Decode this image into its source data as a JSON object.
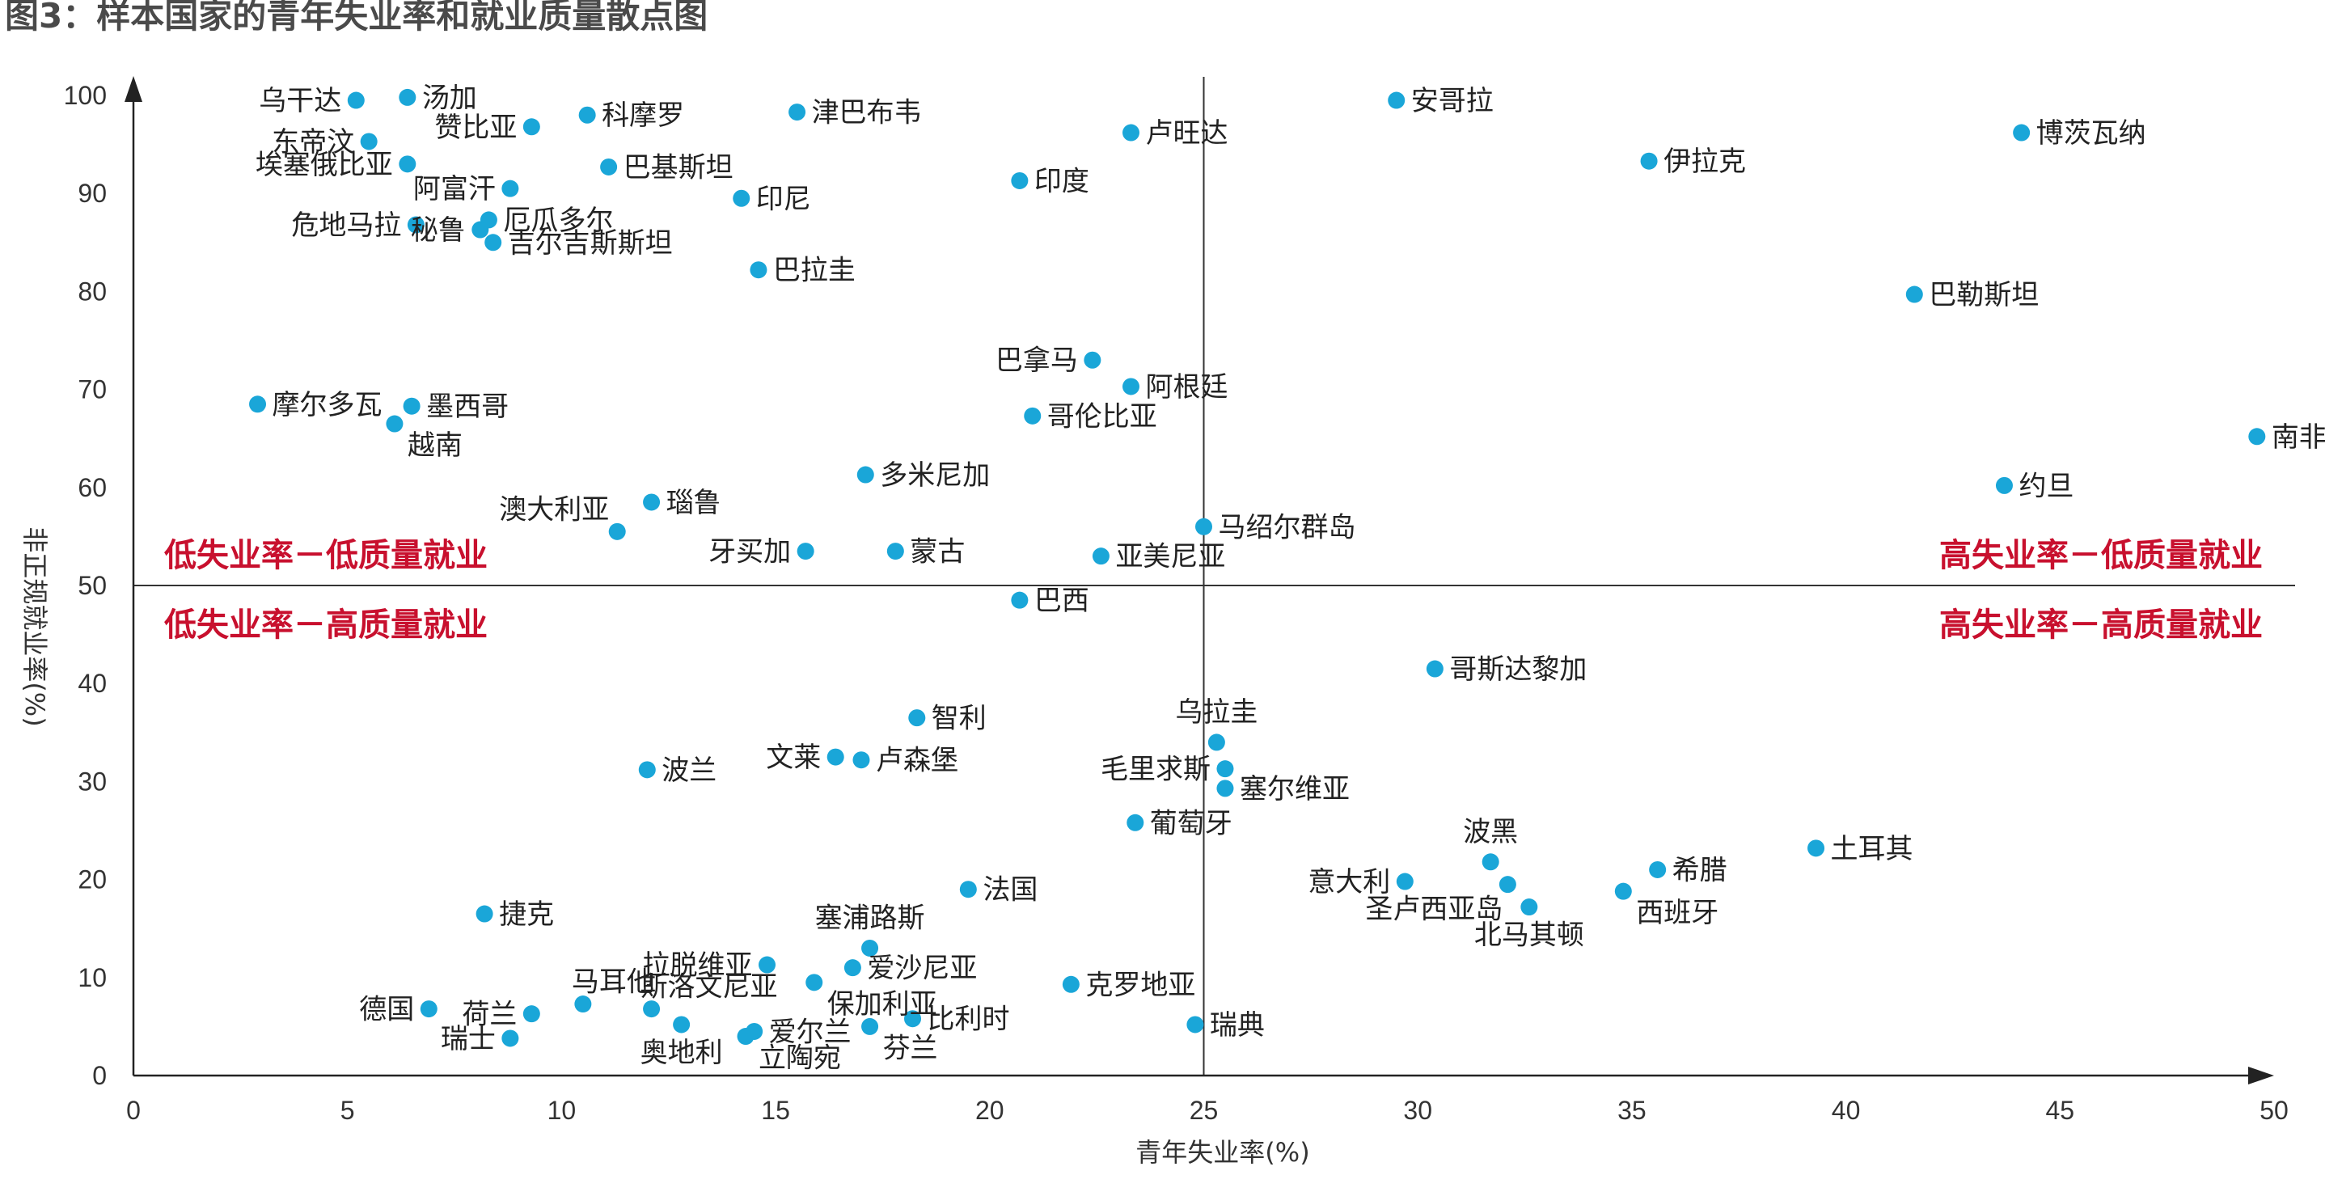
{
  "chart_data": {
    "type": "scatter",
    "title": "图3：样本国家的青年失业率和就业质量散点图",
    "xlabel": "青年失业率(%)",
    "ylabel": "非正规就业率(%)",
    "xlim": [
      0,
      50
    ],
    "ylim": [
      0,
      100
    ],
    "xticks": [
      0,
      5,
      10,
      15,
      20,
      25,
      30,
      35,
      40,
      45,
      50
    ],
    "yticks": [
      0,
      10,
      20,
      30,
      40,
      50,
      60,
      70,
      80,
      90,
      100
    ],
    "divider_x": 25,
    "divider_y": 50,
    "point_color": "#1aa6d8",
    "quadrant_color": "#c8102e",
    "quadrants": {
      "top_left": "低失业率－低质量就业",
      "bottom_left": "低失业率－高质量就业",
      "top_right": "高失业率－低质量就业",
      "bottom_right": "高失业率－高质量就业"
    },
    "points": [
      {
        "label": "乌干达",
        "x": 5.2,
        "y": 99.5,
        "side": "left"
      },
      {
        "label": "汤加",
        "x": 6.4,
        "y": 99.8,
        "side": "right"
      },
      {
        "label": "东帝汶",
        "x": 5.5,
        "y": 95.3,
        "side": "left"
      },
      {
        "label": "赞比亚",
        "x": 9.3,
        "y": 96.8,
        "side": "left"
      },
      {
        "label": "科摩罗",
        "x": 10.6,
        "y": 98.0,
        "side": "right"
      },
      {
        "label": "津巴布韦",
        "x": 15.5,
        "y": 98.3,
        "side": "right"
      },
      {
        "label": "卢旺达",
        "x": 23.3,
        "y": 96.2,
        "side": "right"
      },
      {
        "label": "安哥拉",
        "x": 29.5,
        "y": 99.5,
        "side": "right"
      },
      {
        "label": "博茨瓦纳",
        "x": 44.1,
        "y": 96.2,
        "side": "right"
      },
      {
        "label": "伊拉克",
        "x": 35.4,
        "y": 93.3,
        "side": "right"
      },
      {
        "label": "埃塞俄比亚",
        "x": 6.4,
        "y": 93.0,
        "side": "left"
      },
      {
        "label": "巴基斯坦",
        "x": 11.1,
        "y": 92.7,
        "side": "right"
      },
      {
        "label": "阿富汗",
        "x": 8.8,
        "y": 90.5,
        "side": "left"
      },
      {
        "label": "印尼",
        "x": 14.2,
        "y": 89.5,
        "side": "right"
      },
      {
        "label": "印度",
        "x": 20.7,
        "y": 91.3,
        "side": "right"
      },
      {
        "label": "危地马拉",
        "x": 6.6,
        "y": 86.8,
        "side": "left"
      },
      {
        "label": "厄瓜多尔",
        "x": 8.3,
        "y": 87.3,
        "side": "right"
      },
      {
        "label": "秘鲁",
        "x": 8.1,
        "y": 86.3,
        "side": "left"
      },
      {
        "label": "吉尔吉斯斯坦",
        "x": 8.4,
        "y": 85.0,
        "side": "right"
      },
      {
        "label": "巴拉圭",
        "x": 14.6,
        "y": 82.2,
        "side": "right"
      },
      {
        "label": "巴勒斯坦",
        "x": 41.6,
        "y": 79.7,
        "side": "right"
      },
      {
        "label": "巴拿马",
        "x": 22.4,
        "y": 73.0,
        "side": "left"
      },
      {
        "label": "阿根廷",
        "x": 23.3,
        "y": 70.3,
        "side": "right"
      },
      {
        "label": "摩尔多瓦",
        "x": 2.9,
        "y": 68.5,
        "side": "right"
      },
      {
        "label": "墨西哥",
        "x": 6.5,
        "y": 68.3,
        "side": "right"
      },
      {
        "label": "越南",
        "x": 6.1,
        "y": 66.5,
        "side": "below-right"
      },
      {
        "label": "哥伦比亚",
        "x": 21.0,
        "y": 67.3,
        "side": "right"
      },
      {
        "label": "南非",
        "x": 49.6,
        "y": 65.2,
        "side": "right"
      },
      {
        "label": "多米尼加",
        "x": 17.1,
        "y": 61.3,
        "side": "right"
      },
      {
        "label": "约旦",
        "x": 43.7,
        "y": 60.2,
        "side": "right"
      },
      {
        "label": "瑙鲁",
        "x": 12.1,
        "y": 58.5,
        "side": "right"
      },
      {
        "label": "澳大利亚",
        "x": 11.3,
        "y": 55.5,
        "side": "above-left"
      },
      {
        "label": "马绍尔群岛",
        "x": 25.0,
        "y": 56.0,
        "side": "right"
      },
      {
        "label": "牙买加",
        "x": 15.7,
        "y": 53.5,
        "side": "left"
      },
      {
        "label": "蒙古",
        "x": 17.8,
        "y": 53.5,
        "side": "right"
      },
      {
        "label": "亚美尼亚",
        "x": 22.6,
        "y": 53.0,
        "side": "right"
      },
      {
        "label": "巴西",
        "x": 20.7,
        "y": 48.5,
        "side": "right"
      },
      {
        "label": "哥斯达黎加",
        "x": 30.4,
        "y": 41.5,
        "side": "right"
      },
      {
        "label": "智利",
        "x": 18.3,
        "y": 36.5,
        "side": "right"
      },
      {
        "label": "乌拉圭",
        "x": 25.3,
        "y": 34.0,
        "side": "above"
      },
      {
        "label": "波兰",
        "x": 12.0,
        "y": 31.2,
        "side": "right"
      },
      {
        "label": "文莱",
        "x": 16.4,
        "y": 32.5,
        "side": "left"
      },
      {
        "label": "卢森堡",
        "x": 17.0,
        "y": 32.2,
        "side": "right"
      },
      {
        "label": "毛里求斯",
        "x": 25.5,
        "y": 31.3,
        "side": "left"
      },
      {
        "label": "塞尔维亚",
        "x": 25.5,
        "y": 29.3,
        "side": "right"
      },
      {
        "label": "葡萄牙",
        "x": 23.4,
        "y": 25.8,
        "side": "right"
      },
      {
        "label": "波黑",
        "x": 31.7,
        "y": 21.8,
        "side": "above"
      },
      {
        "label": "希腊",
        "x": 35.6,
        "y": 21.0,
        "side": "right"
      },
      {
        "label": "土耳其",
        "x": 39.3,
        "y": 23.2,
        "side": "right"
      },
      {
        "label": "意大利",
        "x": 29.7,
        "y": 19.8,
        "side": "left"
      },
      {
        "label": "圣卢西亚岛",
        "x": 32.1,
        "y": 19.5,
        "side": "below-left"
      },
      {
        "label": "西班牙",
        "x": 34.8,
        "y": 18.8,
        "side": "below-right"
      },
      {
        "label": "北马其顿",
        "x": 32.6,
        "y": 17.2,
        "side": "below"
      },
      {
        "label": "法国",
        "x": 19.5,
        "y": 19.0,
        "side": "right"
      },
      {
        "label": "捷克",
        "x": 8.2,
        "y": 16.5,
        "side": "right"
      },
      {
        "label": "塞浦路斯",
        "x": 17.2,
        "y": 13.0,
        "side": "above"
      },
      {
        "label": "拉脱维亚",
        "x": 14.8,
        "y": 11.3,
        "side": "left"
      },
      {
        "label": "爱沙尼亚",
        "x": 16.8,
        "y": 11.0,
        "side": "right"
      },
      {
        "label": "马耳他",
        "x": 10.5,
        "y": 7.3,
        "side": "above-right"
      },
      {
        "label": "保加利亚",
        "x": 15.9,
        "y": 9.5,
        "side": "below-right"
      },
      {
        "label": "克罗地亚",
        "x": 21.9,
        "y": 9.3,
        "side": "right"
      },
      {
        "label": "德国",
        "x": 6.9,
        "y": 6.8,
        "side": "left"
      },
      {
        "label": "荷兰",
        "x": 9.3,
        "y": 6.3,
        "side": "left"
      },
      {
        "label": "斯洛文尼亚",
        "x": 12.1,
        "y": 6.8,
        "side": "above-right"
      },
      {
        "label": "比利时",
        "x": 18.2,
        "y": 5.8,
        "side": "right"
      },
      {
        "label": "奥地利",
        "x": 12.8,
        "y": 5.2,
        "side": "below"
      },
      {
        "label": "爱尔兰",
        "x": 14.5,
        "y": 4.5,
        "side": "right"
      },
      {
        "label": "芬兰",
        "x": 17.2,
        "y": 5.0,
        "side": "below-right"
      },
      {
        "label": "瑞士",
        "x": 8.8,
        "y": 3.8,
        "side": "left"
      },
      {
        "label": "立陶宛",
        "x": 14.3,
        "y": 4.0,
        "side": "below-right"
      },
      {
        "label": "瑞典",
        "x": 24.8,
        "y": 5.2,
        "side": "right"
      }
    ]
  }
}
